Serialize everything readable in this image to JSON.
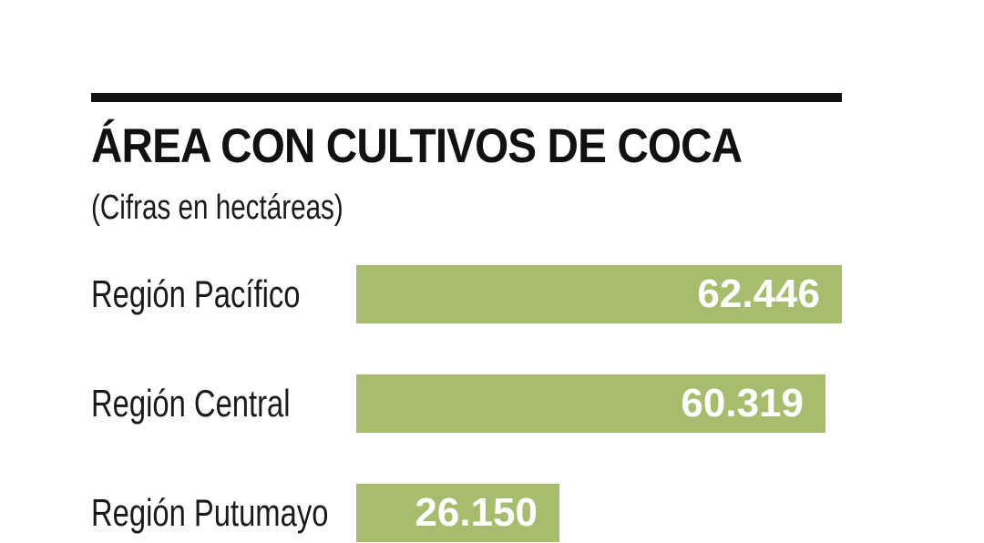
{
  "chart_data": {
    "type": "bar",
    "orientation": "horizontal",
    "title": "ÁREA CON CULTIVOS DE COCA",
    "subtitle": "(Cifras en hectáreas)",
    "categories": [
      "Región Pacífico",
      "Región Central",
      "Región Putumayo"
    ],
    "values": [
      62446,
      60319,
      26150
    ],
    "value_labels": [
      "62.446",
      "60.319",
      "26.150"
    ],
    "bar_color": "#a6bd6d",
    "value_label_color": "#ffffff",
    "grid": false,
    "legend": "none"
  }
}
